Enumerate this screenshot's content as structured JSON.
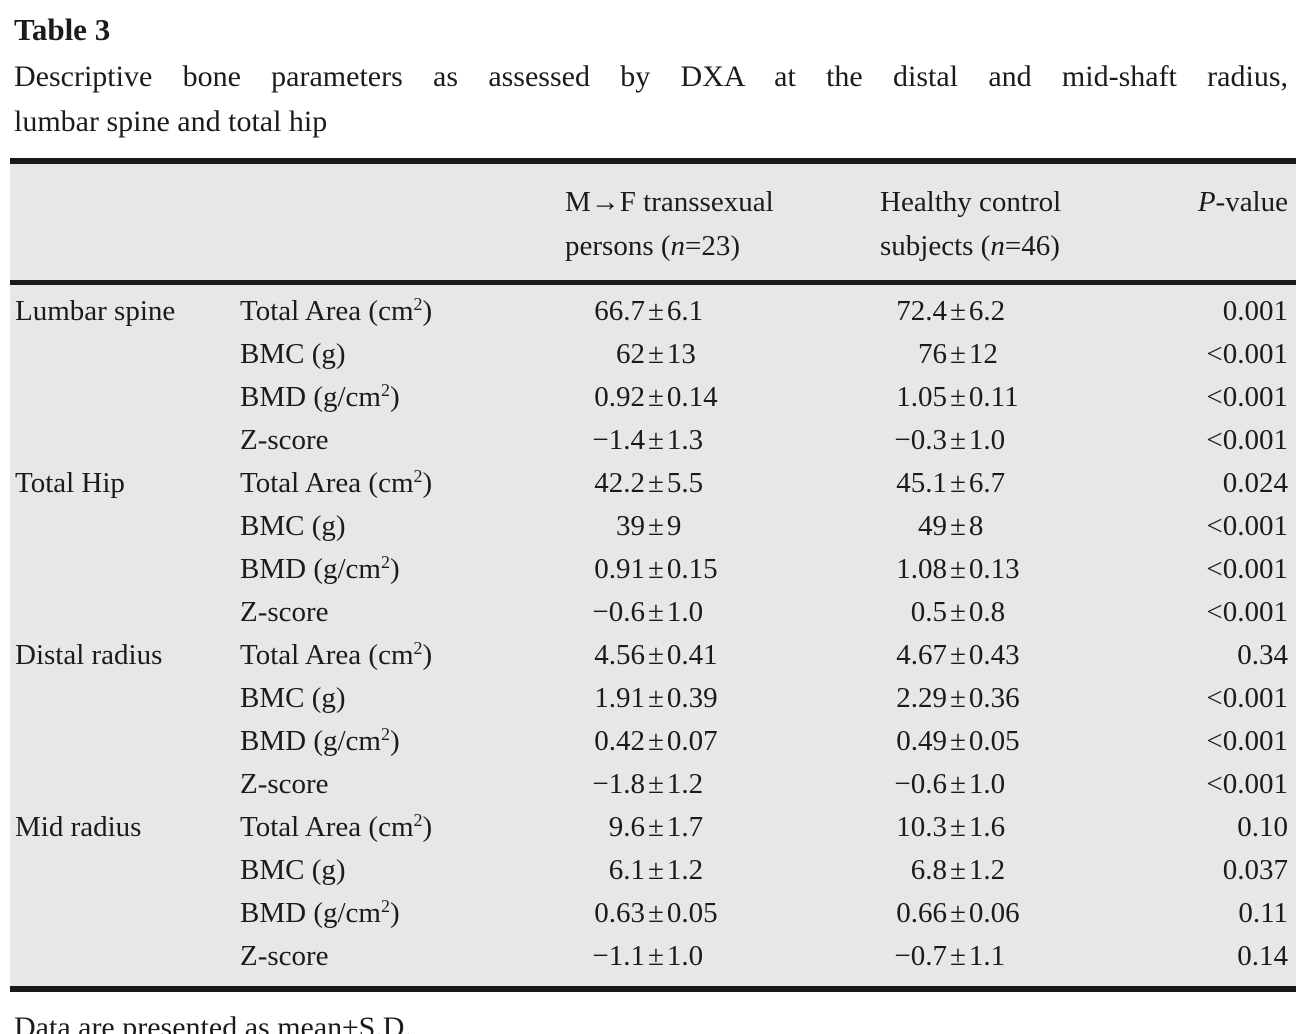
{
  "title": "Table 3",
  "caption": {
    "line1": "Descriptive bone parameters as assessed by DXA at the distal and mid-shaft radius,",
    "line2": "lumbar spine and total hip"
  },
  "header": {
    "col_group": "",
    "col_param": "",
    "col_trans": {
      "line1": "M→F transsexual",
      "line2_pre": "persons (",
      "n": "n",
      "line2_post": "=23)"
    },
    "col_control": {
      "line1": "Healthy control",
      "line2_pre": "subjects (",
      "n": "n",
      "line2_post": "=46)"
    },
    "col_p": {
      "italic": "P",
      "rest": "-value"
    }
  },
  "pm": "±",
  "rows": [
    {
      "group": "Lumbar spine",
      "param": "Total Area (cm",
      "sup": "2",
      "param_end": ")",
      "t_mean": "66.7",
      "t_sd": "6.1",
      "c_mean": "72.4",
      "c_sd": "6.2",
      "p": "0.001"
    },
    {
      "group": "",
      "param": "BMC (g)",
      "sup": "",
      "param_end": "",
      "t_mean": "62",
      "t_sd": "13",
      "c_mean": "76",
      "c_sd": "12",
      "p": "<0.001"
    },
    {
      "group": "",
      "param": "BMD (g/cm",
      "sup": "2",
      "param_end": ")",
      "t_mean": "0.92",
      "t_sd": "0.14",
      "c_mean": "1.05",
      "c_sd": "0.11",
      "p": "<0.001"
    },
    {
      "group": "",
      "param": "Z-score",
      "sup": "",
      "param_end": "",
      "t_mean": "−1.4",
      "t_sd": "1.3",
      "c_mean": "−0.3",
      "c_sd": "1.0",
      "p": "<0.001"
    },
    {
      "group": "Total Hip",
      "param": "Total Area (cm",
      "sup": "2",
      "param_end": ")",
      "t_mean": "42.2",
      "t_sd": "5.5",
      "c_mean": "45.1",
      "c_sd": "6.7",
      "p": "0.024"
    },
    {
      "group": "",
      "param": "BMC (g)",
      "sup": "",
      "param_end": "",
      "t_mean": "39",
      "t_sd": "9",
      "c_mean": "49",
      "c_sd": "8",
      "p": "<0.001"
    },
    {
      "group": "",
      "param": "BMD (g/cm",
      "sup": "2",
      "param_end": ")",
      "t_mean": "0.91",
      "t_sd": "0.15",
      "c_mean": "1.08",
      "c_sd": "0.13",
      "p": "<0.001"
    },
    {
      "group": "",
      "param": "Z-score",
      "sup": "",
      "param_end": "",
      "t_mean": "−0.6",
      "t_sd": "1.0",
      "c_mean": "0.5",
      "c_sd": "0.8",
      "p": "<0.001"
    },
    {
      "group": "Distal radius",
      "param": "Total Area (cm",
      "sup": "2",
      "param_end": ")",
      "t_mean": "4.56",
      "t_sd": "0.41",
      "c_mean": "4.67",
      "c_sd": "0.43",
      "p": "0.34"
    },
    {
      "group": "",
      "param": "BMC (g)",
      "sup": "",
      "param_end": "",
      "t_mean": "1.91",
      "t_sd": "0.39",
      "c_mean": "2.29",
      "c_sd": "0.36",
      "p": "<0.001"
    },
    {
      "group": "",
      "param": "BMD (g/cm",
      "sup": "2",
      "param_end": ")",
      "t_mean": "0.42",
      "t_sd": "0.07",
      "c_mean": "0.49",
      "c_sd": "0.05",
      "p": "<0.001"
    },
    {
      "group": "",
      "param": "Z-score",
      "sup": "",
      "param_end": "",
      "t_mean": "−1.8",
      "t_sd": "1.2",
      "c_mean": "−0.6",
      "c_sd": "1.0",
      "p": "<0.001"
    },
    {
      "group": "Mid radius",
      "param": "Total Area (cm",
      "sup": "2",
      "param_end": ")",
      "t_mean": "9.6",
      "t_sd": "1.7",
      "c_mean": "10.3",
      "c_sd": "1.6",
      "p": "0.10"
    },
    {
      "group": "",
      "param": "BMC (g)",
      "sup": "",
      "param_end": "",
      "t_mean": "6.1",
      "t_sd": "1.2",
      "c_mean": "6.8",
      "c_sd": "1.2",
      "p": "0.037"
    },
    {
      "group": "",
      "param": "BMD (g/cm",
      "sup": "2",
      "param_end": ")",
      "t_mean": "0.63",
      "t_sd": "0.05",
      "c_mean": "0.66",
      "c_sd": "0.06",
      "p": "0.11"
    },
    {
      "group": "",
      "param": "Z-score",
      "sup": "",
      "param_end": "",
      "t_mean": "−1.1",
      "t_sd": "1.0",
      "c_mean": "−0.7",
      "c_sd": "1.1",
      "p": "0.14"
    }
  ],
  "footnote": "Data are presented as mean±S.D.",
  "colors": {
    "table_bg": "#e6e7e6",
    "rule": "#191919",
    "text": "#1b1b1b"
  }
}
